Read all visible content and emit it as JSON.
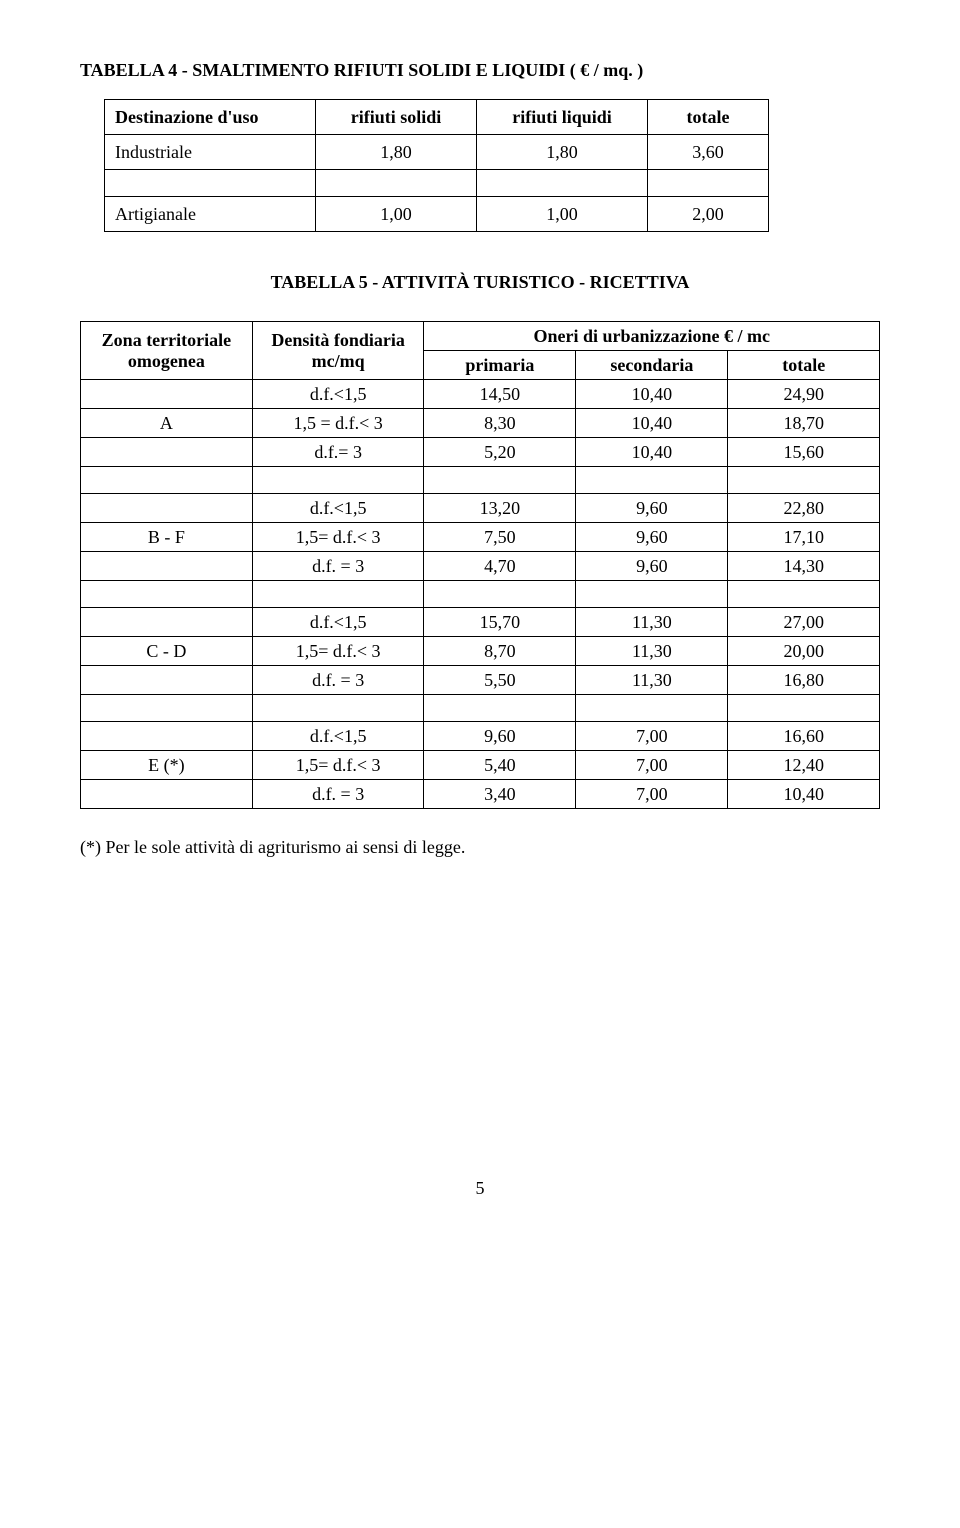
{
  "t4Title": "TABELLA 4 - SMALTIMENTO RIFIUTI SOLIDI E LIQUIDI  ( € / mq. )",
  "t4": {
    "h1": "Destinazione d'uso",
    "h2": "rifiuti solidi",
    "h3": "rifiuti liquidi",
    "h4": "totale",
    "r1": {
      "c1": "Industriale",
      "c2": "1,80",
      "c3": "1,80",
      "c4": "3,60"
    },
    "r2": {
      "c1": "Artigianale",
      "c2": "1,00",
      "c3": "1,00",
      "c4": "2,00"
    }
  },
  "t5Title": "TABELLA 5 - ATTIVITÀ TURISTICO - RICETTIVA",
  "t5": {
    "h1a": "Zona territoriale",
    "h1b": "omogenea",
    "h2a": "Densità fondiaria",
    "h2b": "mc/mq",
    "h3": "Oneri di urbanizzazione   € / mc",
    "h3a": "primaria",
    "h3b": "secondaria",
    "h3c": "totale",
    "groupA": {
      "label": "A",
      "r1": {
        "c2": "d.f.<1,5",
        "c3": "14,50",
        "c4": "10,40",
        "c5": "24,90"
      },
      "r2": {
        "c2": "1,5 = d.f.< 3",
        "c3": "8,30",
        "c4": "10,40",
        "c5": "18,70"
      },
      "r3": {
        "c2": "d.f.= 3",
        "c3": "5,20",
        "c4": "10,40",
        "c5": "15,60"
      }
    },
    "groupB": {
      "label": "B - F",
      "r1": {
        "c2": "d.f.<1,5",
        "c3": "13,20",
        "c4": "9,60",
        "c5": "22,80"
      },
      "r2": {
        "c2": "1,5= d.f.< 3",
        "c3": "7,50",
        "c4": "9,60",
        "c5": "17,10"
      },
      "r3": {
        "c2": "d.f. = 3",
        "c3": "4,70",
        "c4": "9,60",
        "c5": "14,30"
      }
    },
    "groupC": {
      "label": "C - D",
      "r1": {
        "c2": "d.f.<1,5",
        "c3": "15,70",
        "c4": "11,30",
        "c5": "27,00"
      },
      "r2": {
        "c2": "1,5=  d.f.< 3",
        "c3": "8,70",
        "c4": "11,30",
        "c5": "20,00"
      },
      "r3": {
        "c2": "d.f. = 3",
        "c3": "5,50",
        "c4": "11,30",
        "c5": "16,80"
      }
    },
    "groupE": {
      "label": "E (*)",
      "r1": {
        "c2": "d.f.<1,5",
        "c3": "9,60",
        "c4": "7,00",
        "c5": "16,60"
      },
      "r2": {
        "c2": "1,5=  d.f.< 3",
        "c3": "5,40",
        "c4": "7,00",
        "c5": "12,40"
      },
      "r3": {
        "c2": "d.f. = 3",
        "c3": "3,40",
        "c4": "7,00",
        "c5": "10,40"
      }
    }
  },
  "footnote": "(*) Per le sole attività di agriturismo ai sensi di legge.",
  "pageNumber": "5"
}
